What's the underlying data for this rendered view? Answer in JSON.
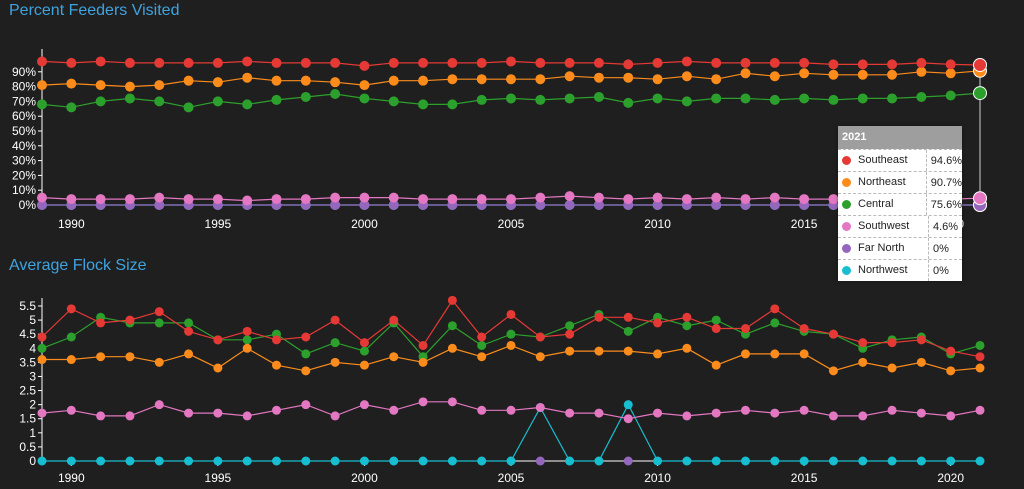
{
  "colors": {
    "background": "#1f1f1f",
    "title": "#3fa3e0",
    "text": "#ffffff",
    "grid": "#ffffff"
  },
  "chart_data": [
    {
      "type": "line",
      "title": "Percent Feeders Visited",
      "xlim": [
        1989,
        2021
      ],
      "ylim": [
        0,
        100
      ],
      "x_ticks": [
        "1990",
        "1995",
        "2000",
        "2005",
        "2010",
        "2015",
        "2020"
      ],
      "y_ticks": [
        "0%",
        "10%",
        "20%",
        "30%",
        "40%",
        "50%",
        "60%",
        "70%",
        "80%",
        "90%"
      ],
      "y_tick_values": [
        0,
        10,
        20,
        30,
        40,
        50,
        60,
        70,
        80,
        90
      ],
      "x": [
        1989,
        1990,
        1991,
        1992,
        1993,
        1994,
        1995,
        1996,
        1997,
        1998,
        1999,
        2000,
        2001,
        2002,
        2003,
        2004,
        2005,
        2006,
        2007,
        2008,
        2009,
        2010,
        2011,
        2012,
        2013,
        2014,
        2015,
        2016,
        2017,
        2018,
        2019,
        2020,
        2021
      ],
      "series": [
        {
          "name": "Southeast",
          "color": "#e53935",
          "values": [
            97,
            96,
            97,
            96,
            96,
            96,
            96,
            97,
            96,
            96,
            96,
            94,
            96,
            96,
            96,
            96,
            97,
            96,
            96,
            96,
            95,
            96,
            97,
            96,
            96,
            96,
            96,
            95,
            95,
            95,
            96,
            95,
            94.6
          ]
        },
        {
          "name": "Northeast",
          "color": "#fb8c1c",
          "values": [
            81,
            82,
            81,
            80,
            81,
            84,
            83,
            86,
            84,
            84,
            83,
            81,
            84,
            84,
            85,
            85,
            85,
            85,
            87,
            86,
            86,
            85,
            87,
            85,
            89,
            87,
            89,
            88,
            88,
            88,
            90,
            89,
            90.7
          ]
        },
        {
          "name": "Central",
          "color": "#2ca02c",
          "values": [
            68,
            66,
            70,
            72,
            70,
            66,
            70,
            68,
            71,
            73,
            75,
            72,
            70,
            68,
            68,
            71,
            72,
            71,
            72,
            73,
            69,
            72,
            70,
            72,
            72,
            71,
            72,
            71,
            72,
            72,
            73,
            74,
            75.6
          ]
        },
        {
          "name": "Southwest",
          "color": "#e377c2",
          "values": [
            5,
            4,
            4,
            4,
            5,
            4,
            4,
            3,
            4,
            4,
            5,
            5,
            5,
            4,
            4,
            4,
            4,
            5,
            6,
            5,
            4,
            5,
            4,
            5,
            4,
            5,
            4,
            4,
            4,
            5,
            4,
            4,
            4.6
          ]
        },
        {
          "name": "Far North",
          "color": "#9467bd",
          "values": [
            0,
            0,
            0,
            0,
            0,
            0,
            0,
            0,
            0,
            0,
            0,
            0,
            0,
            0,
            0,
            0,
            0,
            0,
            0,
            0,
            0,
            0,
            0,
            0,
            0,
            0,
            0,
            0,
            0,
            0,
            0,
            0,
            0
          ]
        },
        {
          "name": "Northwest",
          "color": "#17becf",
          "values": [
            0,
            0,
            0,
            0,
            0,
            0,
            0,
            0,
            0,
            0,
            0,
            0,
            0,
            0,
            0,
            0,
            0,
            0,
            0,
            0,
            0,
            0,
            0,
            0,
            0,
            0,
            0,
            0,
            0,
            0,
            0,
            0,
            0
          ]
        }
      ],
      "tooltip": {
        "year": "2021",
        "rows": [
          {
            "name": "Southeast",
            "value": "94.6%",
            "color": "#e53935"
          },
          {
            "name": "Northeast",
            "value": "90.7%",
            "color": "#fb8c1c"
          },
          {
            "name": "Central",
            "value": "75.6%",
            "color": "#2ca02c"
          },
          {
            "name": "Southwest",
            "value": "4.6%",
            "color": "#e377c2"
          },
          {
            "name": "Far North",
            "value": "0%",
            "color": "#9467bd"
          },
          {
            "name": "Northwest",
            "value": "0%",
            "color": "#17becf"
          }
        ]
      }
    },
    {
      "type": "line",
      "title": "Average Flock Size",
      "xlim": [
        1989,
        2021
      ],
      "ylim": [
        0,
        5.5
      ],
      "x_ticks": [
        "1990",
        "1995",
        "2000",
        "2005",
        "2010",
        "2015",
        "2020"
      ],
      "y_ticks": [
        "0",
        "0.5",
        "1",
        "1.5",
        "2",
        "2.5",
        "3",
        "3.5",
        "4",
        "4.5",
        "5",
        "5.5"
      ],
      "y_tick_values": [
        0,
        0.5,
        1,
        1.5,
        2,
        2.5,
        3,
        3.5,
        4,
        4.5,
        5,
        5.5
      ],
      "x": [
        1989,
        1990,
        1991,
        1992,
        1993,
        1994,
        1995,
        1996,
        1997,
        1998,
        1999,
        2000,
        2001,
        2002,
        2003,
        2004,
        2005,
        2006,
        2007,
        2008,
        2009,
        2010,
        2011,
        2012,
        2013,
        2014,
        2015,
        2016,
        2017,
        2018,
        2019,
        2020,
        2021
      ],
      "series": [
        {
          "name": "Southeast",
          "color": "#e53935",
          "values": [
            4.4,
            5.4,
            4.9,
            5.0,
            5.3,
            4.6,
            4.3,
            4.6,
            4.3,
            4.4,
            5.0,
            4.2,
            5.0,
            4.1,
            5.7,
            4.4,
            5.2,
            4.4,
            4.5,
            5.1,
            5.1,
            4.9,
            5.1,
            4.7,
            4.7,
            5.4,
            4.7,
            4.5,
            4.2,
            4.2,
            4.3,
            3.9,
            3.7
          ]
        },
        {
          "name": "Northeast",
          "color": "#fb8c1c",
          "values": [
            3.6,
            3.6,
            3.7,
            3.7,
            3.5,
            3.8,
            3.3,
            4.0,
            3.4,
            3.2,
            3.5,
            3.4,
            3.7,
            3.5,
            4.0,
            3.7,
            4.1,
            3.7,
            3.9,
            3.9,
            3.9,
            3.8,
            4.0,
            3.4,
            3.8,
            3.8,
            3.8,
            3.2,
            3.5,
            3.3,
            3.5,
            3.2,
            3.3
          ]
        },
        {
          "name": "Central",
          "color": "#2ca02c",
          "values": [
            4.0,
            4.4,
            5.1,
            4.9,
            4.9,
            4.9,
            4.3,
            4.3,
            4.5,
            3.8,
            4.2,
            3.9,
            4.9,
            3.7,
            4.8,
            4.1,
            4.5,
            4.4,
            4.8,
            5.2,
            4.6,
            5.1,
            4.8,
            5.0,
            4.5,
            4.9,
            4.6,
            4.5,
            4.0,
            4.3,
            4.4,
            3.8,
            4.1
          ]
        },
        {
          "name": "Southwest",
          "color": "#e377c2",
          "values": [
            1.7,
            1.8,
            1.6,
            1.6,
            2.0,
            1.7,
            1.7,
            1.6,
            1.8,
            2.0,
            1.6,
            2.0,
            1.8,
            2.1,
            2.1,
            1.8,
            1.8,
            1.9,
            1.7,
            1.7,
            1.5,
            1.7,
            1.6,
            1.7,
            1.8,
            1.7,
            1.8,
            1.6,
            1.6,
            1.8,
            1.7,
            1.6,
            1.8
          ]
        },
        {
          "name": "Far North",
          "color": "#9467bd",
          "values": [
            null,
            null,
            null,
            null,
            null,
            null,
            null,
            null,
            null,
            null,
            null,
            null,
            null,
            null,
            null,
            null,
            null,
            0,
            null,
            null,
            0,
            null,
            null,
            null,
            null,
            null,
            null,
            null,
            null,
            null,
            null,
            null,
            null
          ]
        },
        {
          "name": "Northwest",
          "color": "#17becf",
          "values": [
            0,
            0,
            0,
            0,
            0,
            0,
            0,
            0,
            0,
            0,
            0,
            0,
            0,
            0,
            0,
            0,
            0,
            1.9,
            0,
            0,
            2.0,
            0,
            0,
            0,
            0,
            0,
            0,
            0,
            0,
            0,
            0,
            0,
            0
          ]
        }
      ]
    }
  ]
}
